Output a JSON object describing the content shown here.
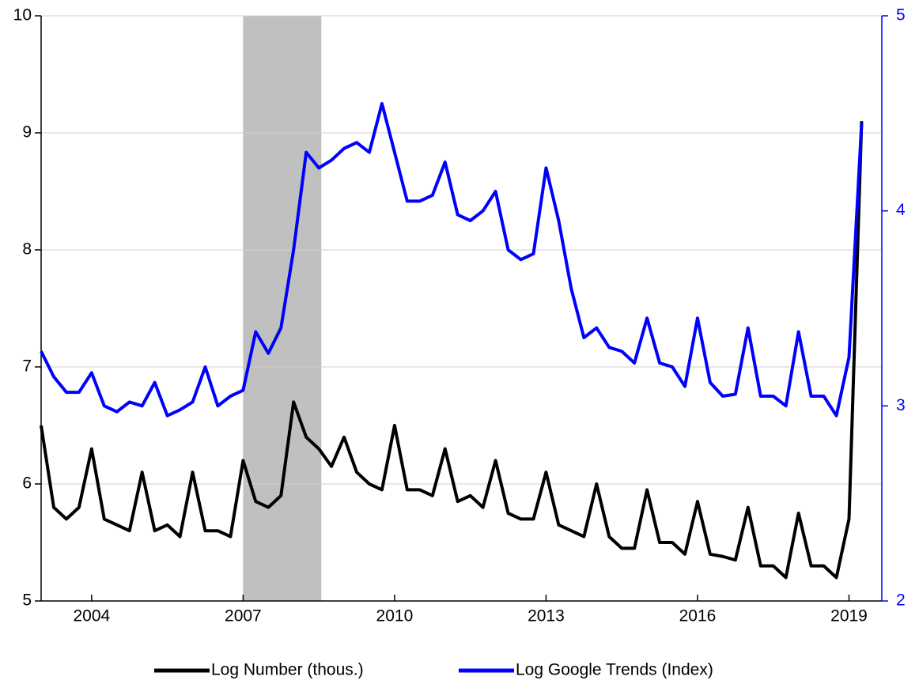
{
  "chart_data": {
    "type": "line",
    "x": [
      2003.0,
      2003.25,
      2003.5,
      2003.75,
      2004.0,
      2004.25,
      2004.5,
      2004.75,
      2005.0,
      2005.25,
      2005.5,
      2005.75,
      2006.0,
      2006.25,
      2006.5,
      2006.75,
      2007.0,
      2007.25,
      2007.5,
      2007.75,
      2008.0,
      2008.25,
      2008.5,
      2008.75,
      2009.0,
      2009.25,
      2009.5,
      2009.75,
      2010.0,
      2010.25,
      2010.5,
      2010.75,
      2011.0,
      2011.25,
      2011.5,
      2011.75,
      2012.0,
      2012.25,
      2012.5,
      2012.75,
      2013.0,
      2013.25,
      2013.5,
      2013.75,
      2014.0,
      2014.25,
      2014.5,
      2014.75,
      2015.0,
      2015.25,
      2015.5,
      2015.75,
      2016.0,
      2016.25,
      2016.5,
      2016.75,
      2017.0,
      2017.25,
      2017.5,
      2017.75,
      2018.0,
      2018.25,
      2018.5,
      2018.75,
      2019.0,
      2019.25
    ],
    "series": [
      {
        "name": "Log Number (thous.)",
        "color": "#000000",
        "values": [
          6.5,
          5.8,
          5.7,
          5.8,
          6.3,
          5.7,
          5.65,
          5.6,
          6.1,
          5.6,
          5.65,
          5.55,
          6.1,
          5.6,
          5.6,
          5.55,
          6.2,
          5.85,
          5.8,
          5.9,
          6.7,
          6.4,
          6.3,
          6.15,
          6.4,
          6.1,
          6.0,
          5.95,
          6.5,
          5.95,
          5.95,
          5.9,
          6.3,
          5.85,
          5.9,
          5.8,
          6.2,
          5.75,
          5.7,
          5.7,
          6.1,
          5.65,
          5.6,
          5.55,
          6.0,
          5.55,
          5.45,
          5.45,
          5.95,
          5.5,
          5.5,
          5.4,
          5.85,
          5.4,
          5.38,
          5.35,
          5.8,
          5.3,
          5.3,
          5.2,
          5.75,
          5.3,
          5.3,
          5.2,
          5.7,
          9.1
        ]
      },
      {
        "name": "Log Google Trends (Index)",
        "color": "#0000ff",
        "axis": "y2",
        "values": [
          3.28,
          3.15,
          3.07,
          3.07,
          3.17,
          3.0,
          2.97,
          3.02,
          3.0,
          3.12,
          2.95,
          2.98,
          3.02,
          3.2,
          3.0,
          3.05,
          3.08,
          3.38,
          3.27,
          3.4,
          3.8,
          4.3,
          4.22,
          4.26,
          4.32,
          4.35,
          4.3,
          4.55,
          4.3,
          4.05,
          4.05,
          4.08,
          4.25,
          3.98,
          3.95,
          4.0,
          4.1,
          3.8,
          3.75,
          3.78,
          4.22,
          3.95,
          3.6,
          3.35,
          3.4,
          3.3,
          3.28,
          3.22,
          3.45,
          3.22,
          3.2,
          3.1,
          3.45,
          3.12,
          3.05,
          3.06,
          3.4,
          3.05,
          3.05,
          3.0,
          3.38,
          3.05,
          3.05,
          2.95,
          3.25,
          4.45
        ]
      }
    ],
    "xlim": [
      2003.0,
      2019.65
    ],
    "xticks": [
      2004,
      2007,
      2010,
      2013,
      2016,
      2019
    ],
    "ylim": [
      5,
      10
    ],
    "yticks": [
      5,
      6,
      7,
      8,
      9,
      10
    ],
    "y2lim": [
      2,
      5
    ],
    "y2ticks": [
      2,
      3,
      4,
      5
    ],
    "shaded_range": [
      2007.0,
      2008.55
    ],
    "grid": true
  }
}
